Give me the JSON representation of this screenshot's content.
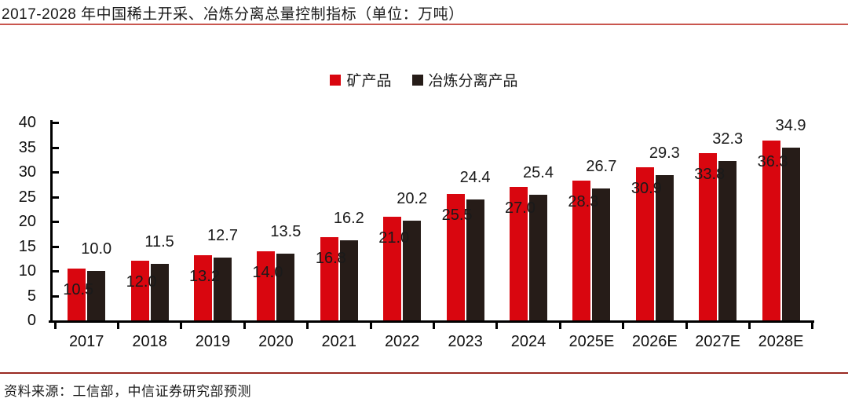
{
  "title": "2017-2028 年中国稀土开采、冶炼分离总量控制指标（单位：万吨）",
  "source": "资料来源：工信部，中信证券研究部预测",
  "colors": {
    "mineral_red": "#d9060f",
    "smelting_black": "#261c18",
    "title_rule": "#c9564e",
    "source_rule": "#992922",
    "axis": "#000000",
    "text": "#1a1a1a"
  },
  "legend": {
    "items": [
      {
        "label": "矿产品",
        "color": "#d9060f"
      },
      {
        "label": "冶炼分离产品",
        "color": "#261c18"
      }
    ]
  },
  "chart_data": {
    "type": "bar",
    "title": "2017-2028 年中国稀土开采、冶炼分离总量控制指标（单位：万吨）",
    "categories": [
      "2017",
      "2018",
      "2019",
      "2020",
      "2021",
      "2022",
      "2023",
      "2024",
      "2025E",
      "2026E",
      "2027E",
      "2028E"
    ],
    "series": [
      {
        "name": "矿产品",
        "color": "#d9060f",
        "values": [
          10.5,
          12.0,
          13.2,
          14.0,
          16.8,
          21.0,
          25.5,
          27.0,
          28.3,
          30.9,
          33.8,
          36.3
        ]
      },
      {
        "name": "冶炼分离产品",
        "color": "#261c18",
        "values": [
          10.0,
          11.5,
          12.7,
          13.5,
          16.2,
          20.2,
          24.4,
          25.4,
          26.7,
          29.3,
          32.3,
          34.9
        ]
      }
    ],
    "xlabel": "",
    "ylabel": "",
    "ylim": [
      0,
      40
    ],
    "ytick_step": 5,
    "grid": false,
    "legend_position": "top",
    "value_labels": true,
    "value_label_format": "one_decimal"
  }
}
